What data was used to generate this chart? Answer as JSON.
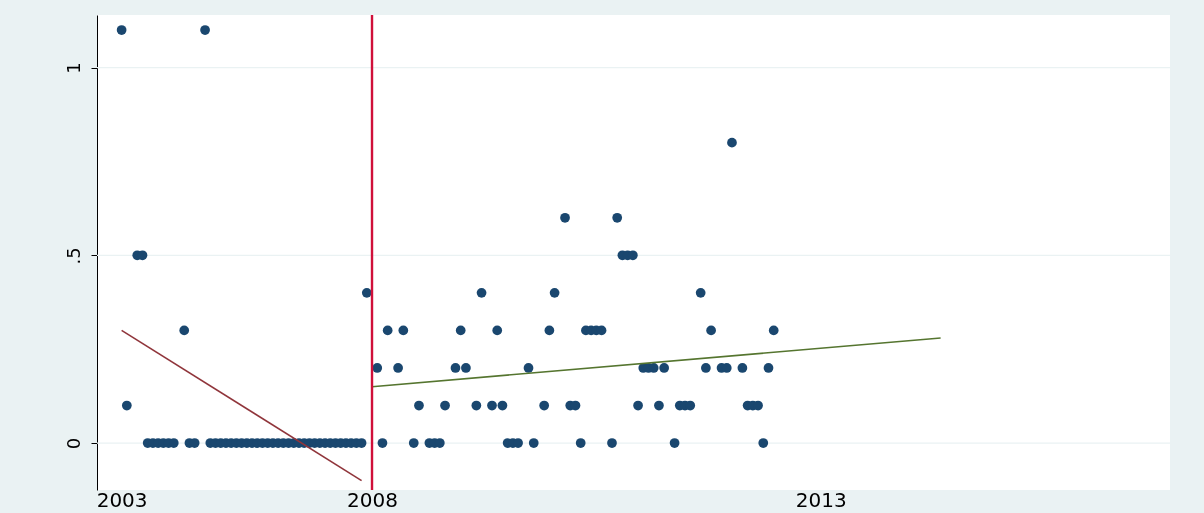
{
  "chart_data": {
    "type": "scatter",
    "categories": [
      "2003",
      null,
      null,
      null,
      null,
      null,
      null,
      null,
      null,
      null,
      null,
      null,
      null,
      null,
      null,
      null,
      null,
      null,
      null,
      null,
      null,
      null,
      null,
      null,
      null,
      null,
      null,
      null,
      null,
      null,
      null,
      null,
      null,
      null,
      null,
      null,
      null,
      null,
      null,
      null,
      null,
      null,
      null,
      null,
      null,
      null,
      null,
      null,
      "2008",
      null,
      null,
      null,
      null,
      null,
      null,
      null,
      null,
      null,
      null,
      null,
      null,
      null,
      null,
      null,
      null,
      null,
      null,
      null,
      null,
      null,
      null,
      null,
      null,
      null,
      null,
      null,
      null,
      null,
      null,
      null,
      null,
      null,
      null,
      null,
      null,
      null,
      null,
      null,
      null,
      null,
      null,
      null,
      null,
      null,
      null,
      null,
      null,
      null,
      null,
      null,
      null,
      null,
      null,
      null,
      null,
      null,
      null,
      null,
      null,
      null,
      null,
      null,
      null,
      null,
      null,
      null,
      null,
      null,
      null,
      null,
      null,
      null,
      null,
      null,
      null,
      null,
      null,
      null,
      null,
      null,
      null,
      null,
      null,
      null,
      "2013",
      null,
      null,
      null,
      null,
      null,
      null,
      null,
      null,
      null,
      null,
      null,
      null,
      null,
      null,
      null,
      null,
      null,
      null,
      null,
      null,
      null,
      null,
      null
    ],
    "ylim": [
      -0.125,
      1.14
    ],
    "yticks": [
      0,
      {
        "value": 0.5,
        "label": ".5"
      },
      1
    ],
    "grid": "y",
    "series": [
      {
        "color": "#1a476f",
        "marker": "circle",
        "values": [
          1.1,
          0.1,
          null,
          0.5,
          0.5,
          0,
          0,
          0,
          0,
          0,
          0,
          null,
          0.3,
          0,
          0,
          null,
          1.1,
          0,
          0,
          0,
          0,
          0,
          0,
          0,
          0,
          0,
          0,
          0,
          0,
          0,
          0,
          0,
          0,
          0,
          0,
          0,
          0,
          0,
          0,
          0,
          0,
          0,
          0,
          0,
          0,
          0,
          0,
          0.4,
          null,
          0.2,
          0,
          0.3,
          null,
          0.2,
          0.3,
          null,
          0,
          0.1,
          null,
          0,
          0,
          0,
          0.1,
          null,
          0.2,
          0.3,
          0.2,
          null,
          0.1,
          0.4,
          null,
          0.1,
          0.3,
          0.1,
          0,
          0,
          0,
          null,
          0.2,
          0,
          null,
          0.1,
          0.3,
          0.4,
          null,
          0.6,
          0.1,
          0.1,
          0,
          0.3,
          0.3,
          0.3,
          0.3,
          null,
          0,
          0.6,
          0.5,
          0.5,
          0.5,
          0.1,
          0.2,
          0.2,
          0.2,
          0.1,
          0.2,
          null,
          0,
          0.1,
          0.1,
          0.1,
          null,
          0.4,
          0.2,
          0.3,
          null,
          0.2,
          0.2,
          0.8,
          null,
          0.2,
          0.1,
          0.1,
          0.1,
          0,
          0.2,
          0.3,
          null,
          null,
          null,
          null,
          null,
          null,
          null,
          null,
          null,
          null,
          null,
          null,
          null,
          null,
          null,
          null,
          null,
          null,
          null,
          null,
          null,
          null,
          null,
          null,
          null,
          null,
          null,
          null,
          null,
          null,
          null,
          null
        ]
      },
      {
        "type": "line",
        "color": "#90353b",
        "values": [
          0.3,
          null,
          null,
          null,
          null,
          null,
          null,
          null,
          null,
          null,
          null,
          null,
          null,
          null,
          null,
          null,
          null,
          null,
          null,
          null,
          null,
          null,
          null,
          null,
          null,
          null,
          null,
          null,
          null,
          null,
          null,
          null,
          null,
          null,
          null,
          null,
          null,
          null,
          null,
          null,
          null,
          null,
          null,
          null,
          null,
          null,
          -0.1,
          null,
          null,
          null,
          null,
          null,
          null,
          null,
          null,
          null,
          null,
          null,
          null,
          null,
          null,
          null,
          null,
          null,
          null,
          null,
          null,
          null,
          null,
          null,
          null,
          null,
          null,
          null,
          null,
          null,
          null,
          null,
          null,
          null,
          null,
          null,
          null,
          null,
          null,
          null,
          null,
          null,
          null,
          null,
          null,
          null,
          null,
          null,
          null,
          null,
          null,
          null,
          null,
          null,
          null,
          null,
          null,
          null,
          null,
          null,
          null,
          null,
          null,
          null,
          null,
          null,
          null,
          null,
          null,
          null,
          null,
          null,
          null,
          null,
          null,
          null,
          null,
          null,
          null,
          null,
          null,
          null,
          null,
          null,
          null,
          null,
          null,
          null,
          null,
          null,
          null,
          null,
          null,
          null,
          null,
          null,
          null,
          null,
          null,
          null,
          null,
          null,
          null,
          null,
          null,
          null,
          null,
          null,
          null,
          null,
          null,
          null
        ]
      },
      {
        "type": "line",
        "color": "#55752f",
        "values": [
          null,
          null,
          null,
          null,
          null,
          null,
          null,
          null,
          null,
          null,
          null,
          null,
          null,
          null,
          null,
          null,
          null,
          null,
          null,
          null,
          null,
          null,
          null,
          null,
          null,
          null,
          null,
          null,
          null,
          null,
          null,
          null,
          null,
          null,
          null,
          null,
          null,
          null,
          null,
          null,
          null,
          null,
          null,
          null,
          null,
          null,
          null,
          null,
          0.15,
          null,
          null,
          null,
          null,
          null,
          null,
          null,
          null,
          null,
          null,
          null,
          null,
          null,
          null,
          null,
          null,
          null,
          null,
          null,
          null,
          null,
          null,
          null,
          null,
          null,
          null,
          null,
          null,
          null,
          null,
          null,
          null,
          null,
          null,
          null,
          null,
          null,
          null,
          null,
          null,
          null,
          null,
          null,
          null,
          null,
          null,
          null,
          null,
          null,
          null,
          null,
          null,
          null,
          null,
          null,
          null,
          null,
          null,
          null,
          null,
          null,
          null,
          null,
          null,
          null,
          null,
          null,
          null,
          null,
          null,
          null,
          null,
          null,
          null,
          null,
          null,
          null,
          null,
          null,
          null,
          null,
          null,
          null,
          null,
          null,
          null,
          null,
          null,
          null,
          null,
          null,
          null,
          null,
          null,
          null,
          null,
          null,
          null,
          null,
          null,
          null,
          null,
          null,
          null,
          null,
          null,
          null,
          null,
          0.28
        ]
      }
    ],
    "ref_lines": [
      {
        "axis": "x",
        "value": "2008",
        "color": "#d0103a"
      }
    ]
  }
}
